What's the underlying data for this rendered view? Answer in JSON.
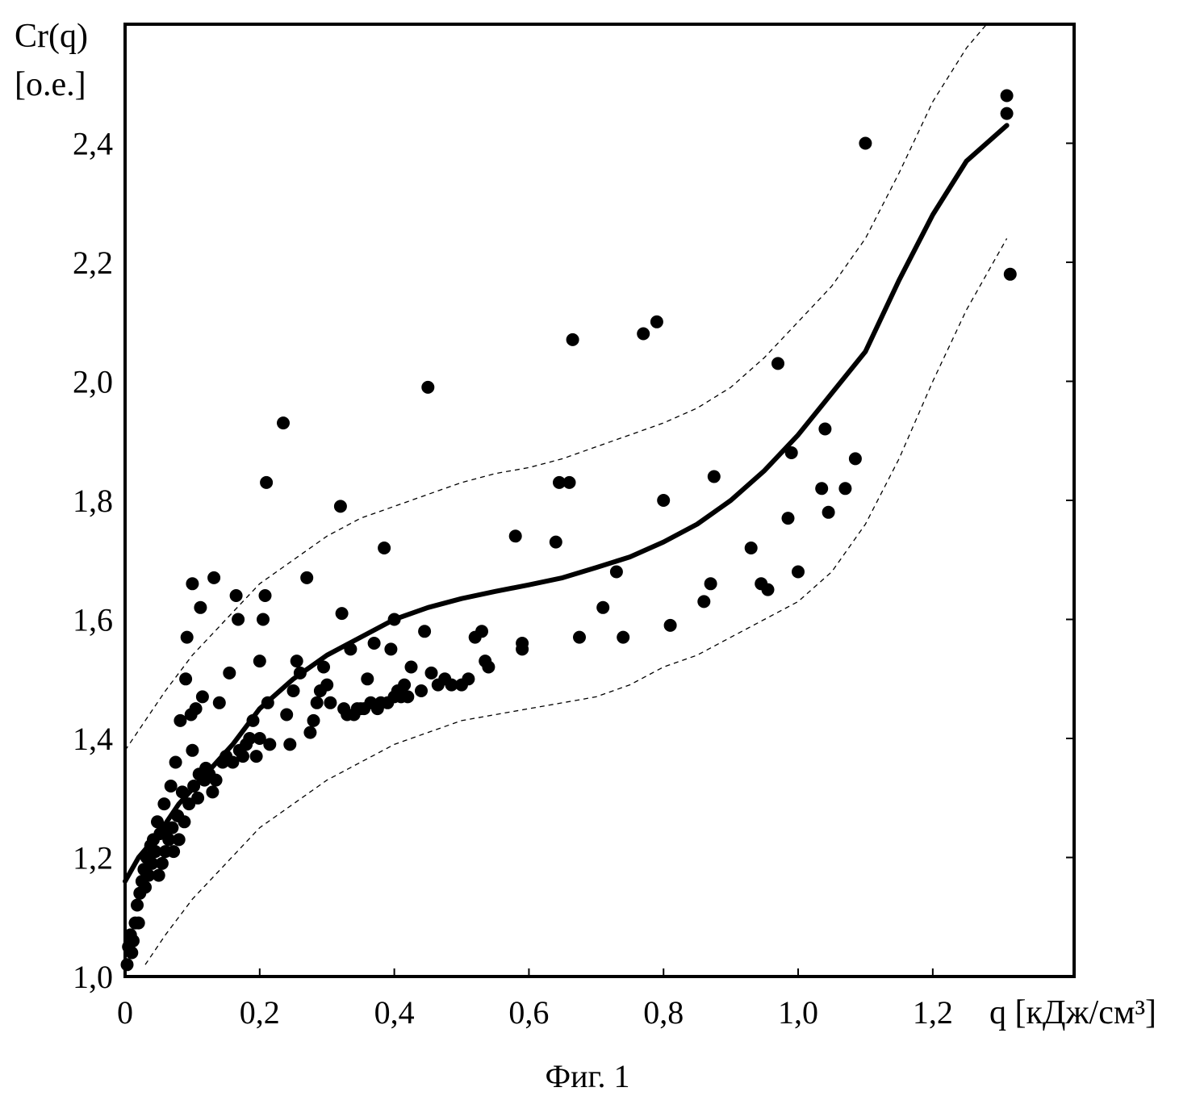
{
  "chart_data": {
    "type": "scatter",
    "xlabel": "q [кДж/см³]",
    "ylabel_line1": "Cr(q)",
    "ylabel_line2": "[о.е.]",
    "caption": "Фиг. 1",
    "xlim": [
      0,
      1.41
    ],
    "ylim": [
      1.0,
      2.6
    ],
    "x_ticks": [
      {
        "value": 0,
        "label": "0"
      },
      {
        "value": 0.2,
        "label": "0,2"
      },
      {
        "value": 0.4,
        "label": "0,4"
      },
      {
        "value": 0.6,
        "label": "0,6"
      },
      {
        "value": 0.8,
        "label": "0,8"
      },
      {
        "value": 1.0,
        "label": "1,0"
      },
      {
        "value": 1.2,
        "label": "1,2"
      }
    ],
    "y_ticks": [
      {
        "value": 1.0,
        "label": "1,0"
      },
      {
        "value": 1.2,
        "label": "1,2"
      },
      {
        "value": 1.4,
        "label": "1,4"
      },
      {
        "value": 1.6,
        "label": "1,6"
      },
      {
        "value": 1.8,
        "label": "1,8"
      },
      {
        "value": 2.0,
        "label": "2,0"
      },
      {
        "value": 2.2,
        "label": "2,2"
      },
      {
        "value": 2.4,
        "label": "2,4"
      }
    ],
    "grid": false,
    "colors": {
      "ink": "#000000",
      "background": "#ffffff"
    },
    "fit_curve": [
      [
        0.0,
        1.16
      ],
      [
        0.02,
        1.2
      ],
      [
        0.05,
        1.24
      ],
      [
        0.08,
        1.29
      ],
      [
        0.12,
        1.34
      ],
      [
        0.16,
        1.39
      ],
      [
        0.2,
        1.45
      ],
      [
        0.25,
        1.5
      ],
      [
        0.3,
        1.54
      ],
      [
        0.35,
        1.57
      ],
      [
        0.4,
        1.6
      ],
      [
        0.45,
        1.62
      ],
      [
        0.5,
        1.635
      ],
      [
        0.55,
        1.647
      ],
      [
        0.6,
        1.658
      ],
      [
        0.65,
        1.67
      ],
      [
        0.7,
        1.687
      ],
      [
        0.75,
        1.705
      ],
      [
        0.8,
        1.73
      ],
      [
        0.85,
        1.76
      ],
      [
        0.9,
        1.8
      ],
      [
        0.95,
        1.85
      ],
      [
        1.0,
        1.91
      ],
      [
        1.05,
        1.98
      ],
      [
        1.1,
        2.05
      ],
      [
        1.15,
        2.17
      ],
      [
        1.2,
        2.28
      ],
      [
        1.25,
        2.37
      ],
      [
        1.31,
        2.43
      ]
    ],
    "upper_band": [
      [
        0.0,
        1.38
      ],
      [
        0.03,
        1.43
      ],
      [
        0.06,
        1.48
      ],
      [
        0.1,
        1.54
      ],
      [
        0.15,
        1.6
      ],
      [
        0.2,
        1.66
      ],
      [
        0.25,
        1.7
      ],
      [
        0.3,
        1.74
      ],
      [
        0.35,
        1.77
      ],
      [
        0.4,
        1.79
      ],
      [
        0.45,
        1.81
      ],
      [
        0.5,
        1.83
      ],
      [
        0.55,
        1.845
      ],
      [
        0.6,
        1.855
      ],
      [
        0.65,
        1.87
      ],
      [
        0.7,
        1.89
      ],
      [
        0.75,
        1.91
      ],
      [
        0.8,
        1.93
      ],
      [
        0.85,
        1.955
      ],
      [
        0.9,
        1.99
      ],
      [
        0.95,
        2.04
      ],
      [
        1.0,
        2.1
      ],
      [
        1.05,
        2.16
      ],
      [
        1.1,
        2.24
      ],
      [
        1.15,
        2.35
      ],
      [
        1.2,
        2.47
      ],
      [
        1.25,
        2.56
      ],
      [
        1.28,
        2.6
      ]
    ],
    "lower_band": [
      [
        0.03,
        1.02
      ],
      [
        0.06,
        1.07
      ],
      [
        0.1,
        1.13
      ],
      [
        0.15,
        1.19
      ],
      [
        0.2,
        1.25
      ],
      [
        0.25,
        1.29
      ],
      [
        0.3,
        1.33
      ],
      [
        0.35,
        1.36
      ],
      [
        0.4,
        1.39
      ],
      [
        0.45,
        1.41
      ],
      [
        0.5,
        1.43
      ],
      [
        0.55,
        1.44
      ],
      [
        0.6,
        1.45
      ],
      [
        0.65,
        1.46
      ],
      [
        0.7,
        1.47
      ],
      [
        0.75,
        1.49
      ],
      [
        0.8,
        1.52
      ],
      [
        0.85,
        1.54
      ],
      [
        0.9,
        1.57
      ],
      [
        0.95,
        1.6
      ],
      [
        1.0,
        1.63
      ],
      [
        1.05,
        1.68
      ],
      [
        1.1,
        1.76
      ],
      [
        1.15,
        1.87
      ],
      [
        1.2,
        2.0
      ],
      [
        1.25,
        2.12
      ],
      [
        1.31,
        2.24
      ]
    ],
    "points": [
      [
        0.003,
        1.02
      ],
      [
        0.005,
        1.05
      ],
      [
        0.008,
        1.07
      ],
      [
        0.01,
        1.04
      ],
      [
        0.012,
        1.06
      ],
      [
        0.015,
        1.09
      ],
      [
        0.018,
        1.12
      ],
      [
        0.02,
        1.09
      ],
      [
        0.022,
        1.14
      ],
      [
        0.025,
        1.16
      ],
      [
        0.028,
        1.18
      ],
      [
        0.03,
        1.15
      ],
      [
        0.032,
        1.2
      ],
      [
        0.035,
        1.17
      ],
      [
        0.038,
        1.22
      ],
      [
        0.04,
        1.19
      ],
      [
        0.042,
        1.23
      ],
      [
        0.045,
        1.21
      ],
      [
        0.048,
        1.26
      ],
      [
        0.05,
        1.17
      ],
      [
        0.052,
        1.24
      ],
      [
        0.055,
        1.19
      ],
      [
        0.058,
        1.29
      ],
      [
        0.06,
        1.21
      ],
      [
        0.062,
        1.25
      ],
      [
        0.065,
        1.23
      ],
      [
        0.068,
        1.32
      ],
      [
        0.07,
        1.25
      ],
      [
        0.072,
        1.21
      ],
      [
        0.075,
        1.36
      ],
      [
        0.078,
        1.27
      ],
      [
        0.08,
        1.23
      ],
      [
        0.082,
        1.43
      ],
      [
        0.085,
        1.31
      ],
      [
        0.088,
        1.26
      ],
      [
        0.09,
        1.5
      ],
      [
        0.092,
        1.57
      ],
      [
        0.095,
        1.29
      ],
      [
        0.098,
        1.44
      ],
      [
        0.1,
        1.38
      ],
      [
        0.1,
        1.66
      ],
      [
        0.102,
        1.32
      ],
      [
        0.105,
        1.45
      ],
      [
        0.108,
        1.3
      ],
      [
        0.11,
        1.34
      ],
      [
        0.112,
        1.62
      ],
      [
        0.115,
        1.47
      ],
      [
        0.118,
        1.33
      ],
      [
        0.12,
        1.35
      ],
      [
        0.125,
        1.34
      ],
      [
        0.13,
        1.31
      ],
      [
        0.132,
        1.67
      ],
      [
        0.135,
        1.33
      ],
      [
        0.14,
        1.46
      ],
      [
        0.145,
        1.36
      ],
      [
        0.15,
        1.37
      ],
      [
        0.155,
        1.51
      ],
      [
        0.16,
        1.36
      ],
      [
        0.165,
        1.64
      ],
      [
        0.168,
        1.6
      ],
      [
        0.17,
        1.38
      ],
      [
        0.175,
        1.37
      ],
      [
        0.18,
        1.39
      ],
      [
        0.185,
        1.4
      ],
      [
        0.19,
        1.43
      ],
      [
        0.195,
        1.37
      ],
      [
        0.2,
        1.4
      ],
      [
        0.2,
        1.53
      ],
      [
        0.205,
        1.6
      ],
      [
        0.208,
        1.64
      ],
      [
        0.21,
        1.83
      ],
      [
        0.212,
        1.46
      ],
      [
        0.215,
        1.39
      ],
      [
        0.235,
        1.93
      ],
      [
        0.24,
        1.44
      ],
      [
        0.245,
        1.39
      ],
      [
        0.25,
        1.48
      ],
      [
        0.255,
        1.53
      ],
      [
        0.26,
        1.51
      ],
      [
        0.27,
        1.67
      ],
      [
        0.275,
        1.41
      ],
      [
        0.28,
        1.43
      ],
      [
        0.285,
        1.46
      ],
      [
        0.29,
        1.48
      ],
      [
        0.295,
        1.52
      ],
      [
        0.3,
        1.49
      ],
      [
        0.305,
        1.46
      ],
      [
        0.32,
        1.79
      ],
      [
        0.322,
        1.61
      ],
      [
        0.325,
        1.45
      ],
      [
        0.33,
        1.44
      ],
      [
        0.335,
        1.55
      ],
      [
        0.34,
        1.44
      ],
      [
        0.345,
        1.45
      ],
      [
        0.35,
        1.45
      ],
      [
        0.355,
        1.45
      ],
      [
        0.36,
        1.5
      ],
      [
        0.365,
        1.46
      ],
      [
        0.37,
        1.56
      ],
      [
        0.375,
        1.45
      ],
      [
        0.38,
        1.46
      ],
      [
        0.385,
        1.72
      ],
      [
        0.39,
        1.46
      ],
      [
        0.395,
        1.55
      ],
      [
        0.4,
        1.6
      ],
      [
        0.4,
        1.47
      ],
      [
        0.405,
        1.48
      ],
      [
        0.41,
        1.47
      ],
      [
        0.415,
        1.49
      ],
      [
        0.42,
        1.47
      ],
      [
        0.425,
        1.52
      ],
      [
        0.44,
        1.48
      ],
      [
        0.445,
        1.58
      ],
      [
        0.45,
        1.99
      ],
      [
        0.455,
        1.51
      ],
      [
        0.465,
        1.49
      ],
      [
        0.475,
        1.5
      ],
      [
        0.485,
        1.49
      ],
      [
        0.5,
        1.49
      ],
      [
        0.51,
        1.5
      ],
      [
        0.52,
        1.57
      ],
      [
        0.53,
        1.58
      ],
      [
        0.535,
        1.53
      ],
      [
        0.54,
        1.52
      ],
      [
        0.58,
        1.74
      ],
      [
        0.59,
        1.55
      ],
      [
        0.59,
        1.56
      ],
      [
        0.64,
        1.73
      ],
      [
        0.645,
        1.83
      ],
      [
        0.66,
        1.83
      ],
      [
        0.665,
        2.07
      ],
      [
        0.675,
        1.57
      ],
      [
        0.71,
        1.62
      ],
      [
        0.73,
        1.68
      ],
      [
        0.74,
        1.57
      ],
      [
        0.77,
        2.08
      ],
      [
        0.79,
        2.1
      ],
      [
        0.8,
        1.8
      ],
      [
        0.81,
        1.59
      ],
      [
        0.86,
        1.63
      ],
      [
        0.87,
        1.66
      ],
      [
        0.875,
        1.84
      ],
      [
        0.93,
        1.72
      ],
      [
        0.945,
        1.66
      ],
      [
        0.955,
        1.65
      ],
      [
        0.97,
        2.03
      ],
      [
        0.985,
        1.77
      ],
      [
        0.99,
        1.88
      ],
      [
        1.0,
        1.68
      ],
      [
        1.035,
        1.82
      ],
      [
        1.04,
        1.92
      ],
      [
        1.045,
        1.78
      ],
      [
        1.07,
        1.82
      ],
      [
        1.085,
        1.87
      ],
      [
        1.1,
        2.4
      ],
      [
        1.31,
        2.48
      ],
      [
        1.31,
        2.45
      ],
      [
        1.315,
        2.18
      ]
    ]
  }
}
